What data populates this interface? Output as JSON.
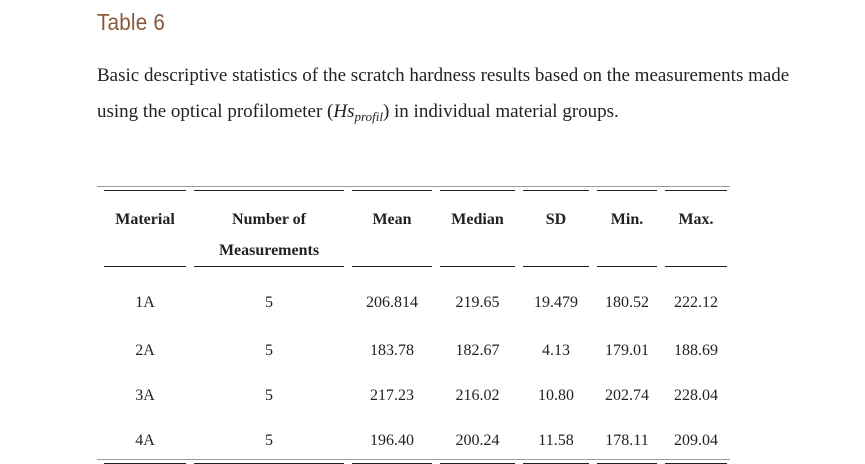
{
  "title": "Table 6",
  "caption": {
    "before": "Basic descriptive statistics of the scratch hardness results based on the measurements made using the optical profilometer (",
    "var": "Hs",
    "sub": "profil",
    "after": ") in individual material groups."
  },
  "table": {
    "headers": [
      "Material",
      "Number of Measurements",
      "Mean",
      "Median",
      "SD",
      "Min.",
      "Max."
    ],
    "rows": [
      [
        "1A",
        "5",
        "206.814",
        "219.65",
        "19.479",
        "180.52",
        "222.12"
      ],
      [
        "2A",
        "5",
        "183.78",
        "182.67",
        "4.13",
        "179.01",
        "188.69"
      ],
      [
        "3A",
        "5",
        "217.23",
        "216.02",
        "10.80",
        "202.74",
        "228.04"
      ],
      [
        "4A",
        "5",
        "196.40",
        "200.24",
        "11.58",
        "178.11",
        "209.04"
      ]
    ]
  }
}
